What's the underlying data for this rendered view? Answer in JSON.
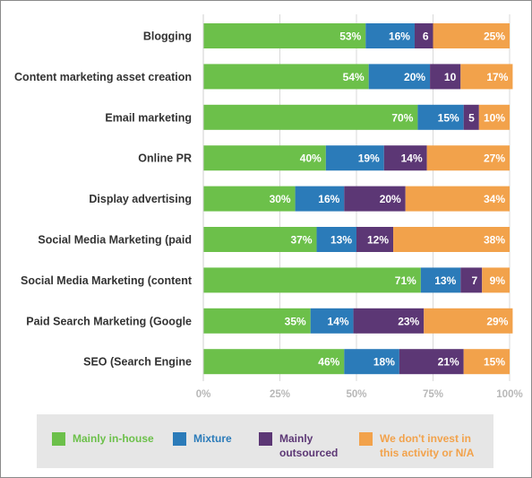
{
  "chart_data": {
    "type": "bar",
    "orientation": "horizontal",
    "stacked": true,
    "title": "",
    "xlabel": "",
    "ylabel": "",
    "xlim": [
      0,
      100
    ],
    "x_ticks": [
      "0%",
      "25%",
      "50%",
      "75%",
      "100%"
    ],
    "grid": true,
    "legend_position": "bottom",
    "categories": [
      "Blogging",
      "Content marketing asset creation",
      "Email marketing",
      "Online PR",
      "Display advertising",
      "Social Media Marketing (paid",
      "Social Media Marketing (content",
      "Paid Search Marketing (Google",
      "SEO (Search Engine"
    ],
    "series": [
      {
        "name": "Mainly in-house",
        "color": "#6cc04a",
        "values": [
          53,
          54,
          70,
          40,
          30,
          37,
          71,
          35,
          46
        ],
        "labels": [
          "53%",
          "54%",
          "70%",
          "40%",
          "30%",
          "37%",
          "71%",
          "35%",
          "46%"
        ]
      },
      {
        "name": "Mixture",
        "color": "#2b7bb9",
        "values": [
          16,
          20,
          15,
          19,
          16,
          13,
          13,
          14,
          18
        ],
        "labels": [
          "16%",
          "20%",
          "15%",
          "19%",
          "16%",
          "13%",
          "13%",
          "14%",
          "18%"
        ]
      },
      {
        "name": "Mainly\noutsourced",
        "color": "#5c3775",
        "values": [
          6,
          10,
          5,
          14,
          20,
          12,
          7,
          23,
          21
        ],
        "labels": [
          "6",
          "10",
          "5",
          "14%",
          "20%",
          "12%",
          "7",
          "23%",
          "21%"
        ]
      },
      {
        "name": "We don't invest in\nthis activity or N/A",
        "color": "#f2a24b",
        "values": [
          25,
          17,
          10,
          27,
          34,
          38,
          9,
          29,
          15
        ],
        "labels": [
          "25%",
          "17%",
          "10%",
          "27%",
          "34%",
          "38%",
          "9%",
          "29%",
          "15%"
        ]
      }
    ]
  }
}
